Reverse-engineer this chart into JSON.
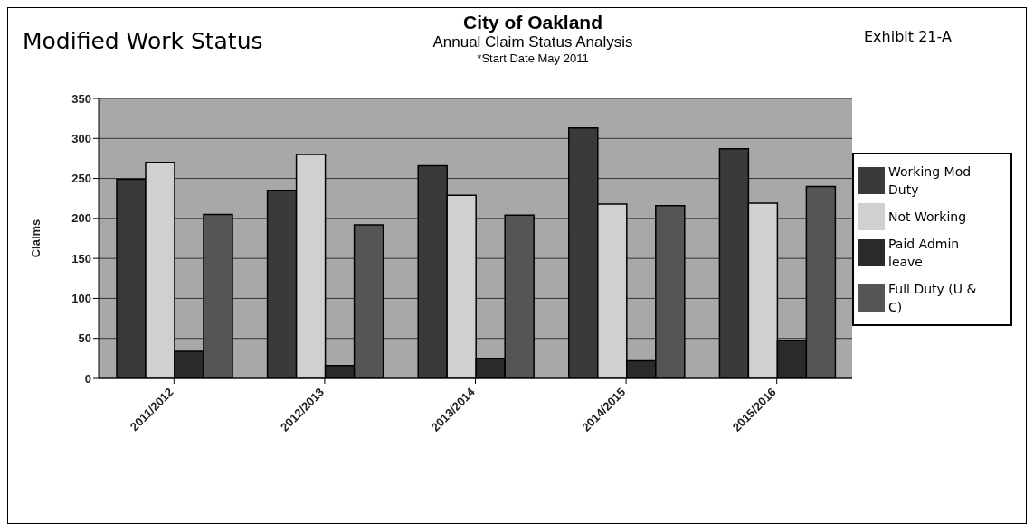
{
  "chart_data": {
    "type": "bar",
    "title": "City of Oakland",
    "subtitle": "Annual Claim Status Analysis",
    "ylabel": "Claims",
    "annotations": [
      "Modified Work Status",
      "*Start Date May 2011",
      "Exhibit 21-A"
    ],
    "categories": [
      "2011/2012",
      "2012/2013",
      "2013/2014",
      "2014/2015",
      "2015/2016"
    ],
    "series": [
      {
        "name": "Working Mod Duty",
        "color": "#3a3a3a",
        "values": [
          249,
          235,
          266,
          313,
          287
        ]
      },
      {
        "name": "Not Working",
        "color": "#d0d0d0",
        "values": [
          270,
          280,
          229,
          218,
          219
        ]
      },
      {
        "name": "Paid Admin leave",
        "color": "#2a2a2a",
        "values": [
          34,
          16,
          25,
          22,
          47
        ]
      },
      {
        "name": "Full Duty (U & C)",
        "color": "#555555",
        "values": [
          205,
          192,
          204,
          216,
          240
        ]
      }
    ],
    "ylim": [
      0,
      350
    ],
    "yticks": [
      0,
      50,
      100,
      150,
      200,
      250,
      300,
      350
    ],
    "grid": "y",
    "legend": "right"
  }
}
